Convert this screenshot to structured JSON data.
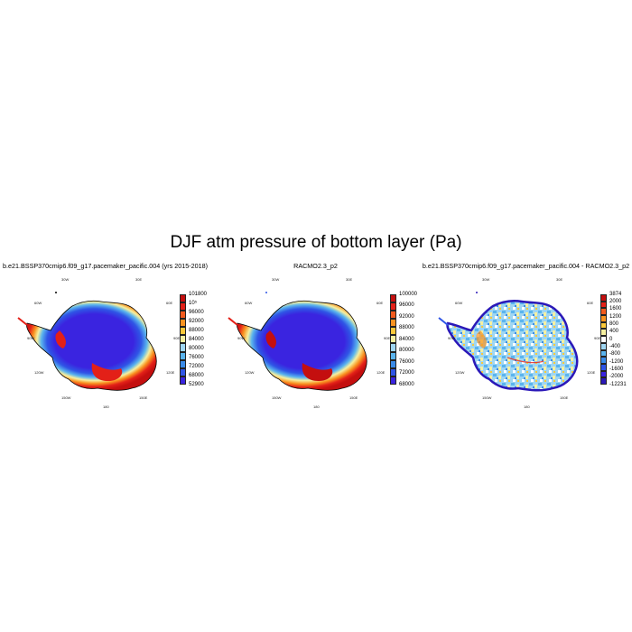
{
  "page": {
    "title": "DJF atm pressure of bottom layer (Pa)"
  },
  "panels": [
    {
      "title": "b.e21.BSSP370cmip6.f09_g17.pacemaker_pacific.004 (yrs 2015-2018)",
      "lon_labels": {
        "w30": "30W",
        "e30": "30E",
        "w60": "60W",
        "e60": "60E",
        "w90": "90W",
        "e90": "90E",
        "w120": "120W",
        "e120": "120E",
        "w150": "150W",
        "e150": "150E",
        "s180": "180"
      },
      "colorbar": {
        "colors": [
          "#c40f0f",
          "#e32018",
          "#f25a1c",
          "#f99320",
          "#fbc93a",
          "#f6f0a0",
          "#9fd6f2",
          "#5ab4ee",
          "#3a8be8",
          "#2f55e6",
          "#3a24e0"
        ],
        "labels": [
          "101800",
          "10⁵",
          "96000",
          "92000",
          "88000",
          "84000",
          "80000",
          "76000",
          "72000",
          "68000",
          "52900"
        ]
      }
    },
    {
      "title": "RACMO2.3_p2",
      "lon_labels": {
        "w30": "30W",
        "e30": "30E",
        "w60": "60W",
        "e60": "60E",
        "w90": "90W",
        "e90": "90E",
        "w120": "120W",
        "e120": "120E",
        "w150": "150W",
        "e150": "150E",
        "s180": "180"
      },
      "colorbar": {
        "colors": [
          "#c40f0f",
          "#e32018",
          "#f25a1c",
          "#f99320",
          "#fbc93a",
          "#f6f0a0",
          "#9fd6f2",
          "#5ab4ee",
          "#3a8be8",
          "#2f55e6",
          "#3a24e0"
        ],
        "labels": [
          "100000",
          "96000",
          "92000",
          "88000",
          "84000",
          "80000",
          "76000",
          "72000",
          "68000"
        ]
      }
    },
    {
      "title": "b.e21.BSSP370cmip6.f09_g17.pacemaker_pacific.004 - RACMO2.3_p2",
      "lon_labels": {
        "w30": "30W",
        "e30": "30E",
        "w60": "60W",
        "e60": "60E",
        "w90": "90W",
        "e90": "90E",
        "w120": "120W",
        "e120": "120E",
        "w150": "150W",
        "e150": "150E",
        "s180": "180"
      },
      "colorbar": {
        "colors": [
          "#c40f0f",
          "#e32018",
          "#f25a1c",
          "#f99320",
          "#fbc93a",
          "#f6f0a0",
          "#ffffff",
          "#9fd6f2",
          "#5ab4ee",
          "#3a8be8",
          "#2f55e6",
          "#3a24e0",
          "#2b18b8"
        ],
        "labels": [
          "3874",
          "2000",
          "1600",
          "1200",
          "800",
          "400",
          "0",
          "-400",
          "-800",
          "-1200",
          "-1600",
          "-2000",
          "-12231"
        ]
      }
    }
  ]
}
